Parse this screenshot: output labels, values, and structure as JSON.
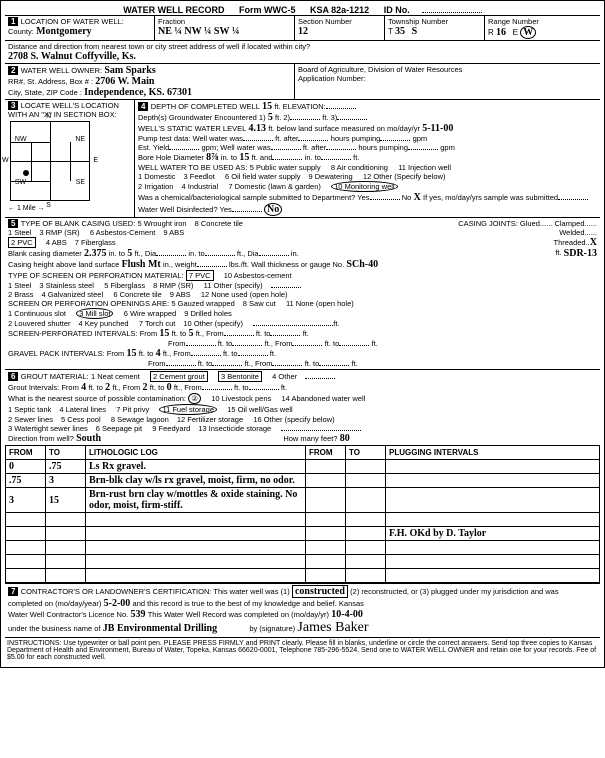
{
  "form": {
    "title": "WATER WELL RECORD",
    "formNo": "Form WWC-5",
    "ksa": "KSA 82a-1212",
    "idLabel": "ID No."
  },
  "loc": {
    "county": "Montgomery",
    "fraction": "NE ¼ NW ¼ SW ¼",
    "section": "12",
    "township": "35",
    "townshipDir": "S",
    "range": "16",
    "rangeDir": "W",
    "address": "2708 S. Walnut Coffyville, Ks."
  },
  "owner": {
    "name": "Sam Sparks",
    "rr": "2706 W. Main",
    "city": "Independence, KS. 67301",
    "board": "Board of Agriculture, Division of Water Resources",
    "appNo": "Application Number:"
  },
  "sec3": {
    "depthCompleted": "15",
    "depthGW": "5",
    "elevation": "",
    "staticLevel": "4.13",
    "staticDate": "5-11-00",
    "boreDia": "8⅞",
    "boreTo": "15",
    "use": "Monitoring well",
    "deptSubmit": "X",
    "disinfect": "No"
  },
  "sec5": {
    "casing": "2 PVC",
    "blankDia": "2.375",
    "blankTo": "5",
    "heightSurface": "Flush Mt",
    "threaded": "X",
    "sdr": "SDR-13",
    "sch": "SCh-40",
    "screenMat": "7 PVC",
    "openings": "3 Mill slot",
    "screenFrom": "15",
    "screenTo": "5",
    "gravelFrom1": "15",
    "gravelTo1": "4"
  },
  "sec6": {
    "groutMat": "2 Cement grout",
    "groutAlt": "3 Bentonite",
    "groutFrom": "4",
    "groutTo": "2",
    "groutFrom2": "2",
    "groutTo2": "0",
    "contamSrc": "Fuel storage",
    "direction": "South",
    "distance": "80"
  },
  "log": {
    "cols": [
      "FROM",
      "TO",
      "LITHOLOGIC LOG",
      "FROM",
      "TO",
      "PLUGGING INTERVALS"
    ],
    "rows": [
      [
        "0",
        ".75",
        "Ls Rx gravel.",
        "",
        "",
        ""
      ],
      [
        ".75",
        "3",
        "Brn-blk clay w/ls rx gravel, moist, firm, no odor.",
        "",
        "",
        ""
      ],
      [
        "3",
        "15",
        "Brn-rust brn clay w/mottles & oxide staining. No odor, moist, firm-stiff.",
        "",
        "",
        ""
      ],
      [
        "",
        "",
        "",
        "",
        "",
        ""
      ],
      [
        "",
        "",
        "",
        "",
        "",
        "F.H. OKd by D. Taylor"
      ],
      [
        "",
        "",
        "",
        "",
        "",
        ""
      ],
      [
        "",
        "",
        "",
        "",
        "",
        ""
      ],
      [
        "",
        "",
        "",
        "",
        "",
        ""
      ]
    ]
  },
  "sec7": {
    "action": "constructed",
    "dateCompleted": "5-2-00",
    "license": "539",
    "recordDate": "10-4-00",
    "business": "JB Environmental Drilling",
    "signature": "James Baker"
  },
  "instructions": "INSTRUCTIONS: Use typewriter or ball point pen. PLEASE PRESS FIRMLY and PRINT clearly. Please fill in blanks, underline or circle the correct answers. Send top three copies to Kansas Department of Health and Environment, Bureau of Water, Topeka, Kansas 66620-0001, Telephone 785-296-5524. Send one to WATER WELL OWNER and retain one for your records. Fee of $5.00 for each constructed well."
}
